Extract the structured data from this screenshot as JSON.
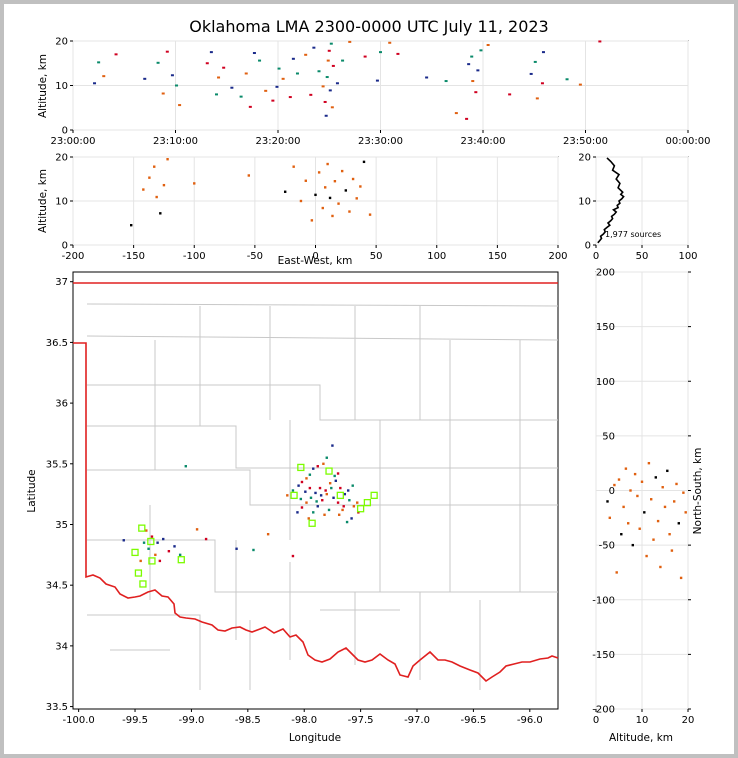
{
  "title": "Oklahoma LMA 2300-0000 UTC July 11, 2023",
  "colors": {
    "state_border": "#e02020",
    "county_lines": "#c8c8c8",
    "stations": "#7cfc00",
    "early": "#1a2a8a",
    "mid": "#0a8a6a",
    "late": "#e06010",
    "latest": "#d00020"
  },
  "chart_data": [
    {
      "id": "time_height",
      "type": "scatter",
      "title": "",
      "xlabel": "",
      "ylabel": "Altitude, km",
      "xlim": [
        "23:00:00",
        "00:00:00"
      ],
      "ylim": [
        0,
        20
      ],
      "xticks": [
        "23:00:00",
        "23:10:00",
        "23:20:00",
        "23:30:00",
        "23:40:00",
        "23:50:00",
        "00:00:00"
      ],
      "yticks": [
        0,
        10,
        20
      ],
      "points": [
        [
          2.1,
          10.5
        ],
        [
          2.5,
          15.2
        ],
        [
          3.0,
          12.1
        ],
        [
          4.2,
          17.0
        ],
        [
          7.0,
          11.5
        ],
        [
          8.3,
          15.1
        ],
        [
          8.8,
          8.2
        ],
        [
          9.2,
          17.6
        ],
        [
          9.7,
          12.3
        ],
        [
          10.1,
          10.0
        ],
        [
          10.4,
          5.6
        ],
        [
          13.1,
          15.0
        ],
        [
          13.5,
          17.5
        ],
        [
          14.0,
          8.0
        ],
        [
          14.2,
          11.8
        ],
        [
          14.7,
          14.0
        ],
        [
          15.5,
          9.5
        ],
        [
          16.4,
          7.5
        ],
        [
          16.9,
          12.7
        ],
        [
          17.3,
          5.2
        ],
        [
          17.7,
          17.3
        ],
        [
          18.2,
          15.6
        ],
        [
          18.8,
          8.8
        ],
        [
          19.5,
          6.6
        ],
        [
          19.9,
          9.7
        ],
        [
          20.1,
          13.8
        ],
        [
          20.5,
          11.5
        ],
        [
          21.2,
          7.4
        ],
        [
          21.5,
          16.0
        ],
        [
          21.9,
          12.7
        ],
        [
          22.7,
          16.9
        ],
        [
          23.2,
          7.9
        ],
        [
          23.5,
          18.5
        ],
        [
          24.0,
          13.2
        ],
        [
          24.4,
          9.8
        ],
        [
          24.6,
          6.3
        ],
        [
          24.7,
          3.2
        ],
        [
          24.8,
          11.9
        ],
        [
          24.9,
          15.6
        ],
        [
          25.0,
          17.8
        ],
        [
          25.1,
          8.9
        ],
        [
          25.2,
          19.4
        ],
        [
          25.3,
          5.1
        ],
        [
          25.4,
          14.4
        ],
        [
          25.8,
          10.5
        ],
        [
          26.3,
          15.6
        ],
        [
          27.0,
          19.8
        ],
        [
          28.5,
          16.5
        ],
        [
          29.7,
          11.1
        ],
        [
          30.0,
          17.5
        ],
        [
          30.9,
          19.6
        ],
        [
          31.7,
          17.1
        ],
        [
          34.5,
          11.8
        ],
        [
          36.4,
          11.0
        ],
        [
          37.4,
          3.8
        ],
        [
          38.4,
          2.5
        ],
        [
          38.6,
          14.8
        ],
        [
          38.9,
          16.5
        ],
        [
          39.0,
          11.0
        ],
        [
          39.3,
          8.5
        ],
        [
          39.5,
          13.4
        ],
        [
          39.8,
          17.9
        ],
        [
          40.5,
          19.1
        ],
        [
          42.6,
          8.0
        ],
        [
          44.7,
          12.6
        ],
        [
          45.1,
          15.3
        ],
        [
          45.3,
          7.1
        ],
        [
          45.8,
          10.5
        ],
        [
          45.9,
          17.5
        ],
        [
          48.2,
          11.4
        ],
        [
          49.5,
          10.2
        ],
        [
          51.4,
          19.9
        ]
      ]
    },
    {
      "id": "ew_altitude",
      "type": "scatter",
      "title": "",
      "xlabel": "East-West, km",
      "ylabel": "Altitude, km",
      "xlim": [
        -200,
        200
      ],
      "ylim": [
        0,
        20
      ],
      "xticks": [
        -200,
        -150,
        -100,
        -50,
        0,
        50,
        100,
        150,
        200
      ],
      "yticks": [
        0,
        10,
        20
      ],
      "points": [
        [
          -152,
          4.5
        ],
        [
          -142,
          12.6
        ],
        [
          -137,
          15.3
        ],
        [
          -133,
          17.8
        ],
        [
          -131,
          10.9
        ],
        [
          -128,
          7.2
        ],
        [
          -125,
          13.6
        ],
        [
          -122,
          19.5
        ],
        [
          -100,
          14.0
        ],
        [
          -55,
          15.8
        ],
        [
          -25,
          12.1
        ],
        [
          -18,
          17.8
        ],
        [
          -12,
          10.0
        ],
        [
          -8,
          14.6
        ],
        [
          -3,
          5.6
        ],
        [
          0,
          11.4
        ],
        [
          3,
          16.5
        ],
        [
          6,
          8.4
        ],
        [
          8,
          13.1
        ],
        [
          10,
          18.4
        ],
        [
          12,
          10.7
        ],
        [
          14,
          6.6
        ],
        [
          16,
          14.5
        ],
        [
          19,
          9.4
        ],
        [
          22,
          16.8
        ],
        [
          25,
          12.4
        ],
        [
          28,
          7.6
        ],
        [
          31,
          15.0
        ],
        [
          34,
          10.6
        ],
        [
          37,
          13.3
        ],
        [
          40,
          18.9
        ],
        [
          45,
          6.9
        ]
      ]
    },
    {
      "id": "altitude_histogram",
      "type": "line",
      "title": "",
      "xlabel": "",
      "ylabel": "",
      "xlim": [
        0,
        100
      ],
      "ylim": [
        0,
        20
      ],
      "xticks": [
        0,
        50,
        100
      ],
      "yticks": [
        0,
        10,
        20
      ],
      "annotation": "1,977 sources",
      "x": [
        2,
        4,
        6,
        5,
        8,
        10,
        9,
        12,
        15,
        13,
        16,
        18,
        17,
        20,
        22,
        19,
        24,
        23,
        26,
        25,
        28,
        30,
        27,
        29,
        24,
        26,
        22,
        25,
        18,
        20,
        16,
        12
      ],
      "y": [
        0.5,
        1.0,
        1.5,
        2.0,
        2.5,
        3.0,
        3.5,
        4.0,
        4.5,
        5.0,
        5.5,
        6.0,
        6.5,
        7.0,
        7.5,
        8.0,
        8.5,
        9.0,
        9.5,
        10.0,
        10.5,
        11.0,
        11.5,
        12.0,
        13.0,
        14.0,
        15.0,
        16.0,
        17.0,
        18.0,
        19.0,
        19.8
      ]
    },
    {
      "id": "plan_view",
      "type": "scatter",
      "title": "",
      "xlabel": "Longitude",
      "ylabel": "Latitude",
      "xlim": [
        -100.05,
        -95.75
      ],
      "ylim": [
        33.48,
        37.08
      ],
      "xticks": [
        -100.0,
        -99.5,
        -99.0,
        -98.5,
        -98.0,
        -97.5,
        -97.0,
        -96.5,
        -96.0
      ],
      "yticks": [
        33.5,
        34.0,
        34.5,
        35.0,
        35.5,
        36.0,
        36.5,
        37.0
      ],
      "stations": [
        [
          -98.03,
          35.47
        ],
        [
          -97.78,
          35.44
        ],
        [
          -98.09,
          35.24
        ],
        [
          -97.38,
          35.24
        ],
        [
          -97.68,
          35.24
        ],
        [
          -97.5,
          35.13
        ],
        [
          -97.44,
          35.18
        ],
        [
          -97.93,
          35.01
        ],
        [
          -99.44,
          34.97
        ],
        [
          -99.36,
          34.86
        ],
        [
          -99.5,
          34.77
        ],
        [
          -99.35,
          34.7
        ],
        [
          -99.09,
          34.71
        ],
        [
          -99.47,
          34.6
        ],
        [
          -99.43,
          34.51
        ]
      ],
      "points": [
        [
          -97.75,
          35.65
        ],
        [
          -97.8,
          35.55
        ],
        [
          -97.83,
          35.5
        ],
        [
          -97.88,
          35.48
        ],
        [
          -97.92,
          35.46
        ],
        [
          -97.95,
          35.41
        ],
        [
          -97.98,
          35.38
        ],
        [
          -98.02,
          35.35
        ],
        [
          -98.05,
          35.32
        ],
        [
          -98.1,
          35.28
        ],
        [
          -98.15,
          35.24
        ],
        [
          -97.7,
          35.42
        ],
        [
          -97.72,
          35.36
        ],
        [
          -97.76,
          35.3
        ],
        [
          -97.8,
          35.25
        ],
        [
          -97.84,
          35.2
        ],
        [
          -97.88,
          35.15
        ],
        [
          -97.92,
          35.1
        ],
        [
          -97.96,
          35.05
        ],
        [
          -97.68,
          35.3
        ],
        [
          -97.64,
          35.25
        ],
        [
          -97.6,
          35.2
        ],
        [
          -97.56,
          35.15
        ],
        [
          -97.52,
          35.1
        ],
        [
          -97.58,
          35.05
        ],
        [
          -97.62,
          35.02
        ],
        [
          -97.66,
          35.12
        ],
        [
          -97.7,
          35.18
        ],
        [
          -97.74,
          35.22
        ],
        [
          -97.78,
          35.12
        ],
        [
          -97.82,
          35.08
        ],
        [
          -97.86,
          35.3
        ],
        [
          -97.9,
          35.26
        ],
        [
          -97.94,
          35.22
        ],
        [
          -97.98,
          35.18
        ],
        [
          -98.02,
          35.14
        ],
        [
          -98.06,
          35.1
        ],
        [
          -97.73,
          35.4
        ],
        [
          -97.77,
          35.34
        ],
        [
          -97.81,
          35.28
        ],
        [
          -97.85,
          35.24
        ],
        [
          -97.89,
          35.19
        ],
        [
          -97.69,
          35.08
        ],
        [
          -97.65,
          35.15
        ],
        [
          -97.61,
          35.28
        ],
        [
          -97.57,
          35.32
        ],
        [
          -97.53,
          35.18
        ],
        [
          -97.95,
          35.3
        ],
        [
          -97.99,
          35.27
        ],
        [
          -98.03,
          35.21
        ],
        [
          -99.4,
          34.95
        ],
        [
          -99.35,
          34.9
        ],
        [
          -99.3,
          34.85
        ],
        [
          -99.38,
          34.8
        ],
        [
          -99.32,
          34.75
        ],
        [
          -99.28,
          34.7
        ],
        [
          -99.25,
          34.88
        ],
        [
          -99.42,
          34.85
        ],
        [
          -99.45,
          34.7
        ],
        [
          -99.2,
          34.78
        ],
        [
          -99.15,
          34.82
        ],
        [
          -99.1,
          34.75
        ],
        [
          -98.95,
          34.96
        ],
        [
          -98.87,
          34.88
        ],
        [
          -98.6,
          34.8
        ],
        [
          -98.45,
          34.79
        ],
        [
          -98.32,
          34.92
        ],
        [
          -98.1,
          34.74
        ],
        [
          -99.6,
          34.87
        ],
        [
          -99.05,
          35.48
        ]
      ]
    },
    {
      "id": "ns_altitude",
      "type": "scatter",
      "title": "",
      "xlabel": "Altitude, km",
      "ylabel": "North-South, km",
      "xlim": [
        0,
        20
      ],
      "ylim": [
        -200,
        200
      ],
      "xticks": [
        0,
        10,
        20
      ],
      "yticks": [
        -200,
        -150,
        -100,
        -50,
        0,
        50,
        100,
        150,
        200
      ],
      "points": [
        [
          2.5,
          -10
        ],
        [
          3.0,
          -25
        ],
        [
          4.0,
          5
        ],
        [
          4.5,
          -75
        ],
        [
          5.0,
          10
        ],
        [
          5.5,
          -40
        ],
        [
          6.0,
          -15
        ],
        [
          6.5,
          20
        ],
        [
          7.0,
          -30
        ],
        [
          7.5,
          0
        ],
        [
          8.0,
          -50
        ],
        [
          8.5,
          15
        ],
        [
          9.0,
          -5
        ],
        [
          9.5,
          -35
        ],
        [
          10.0,
          8
        ],
        [
          10.5,
          -20
        ],
        [
          11.0,
          -60
        ],
        [
          11.5,
          25
        ],
        [
          12.0,
          -8
        ],
        [
          12.5,
          -45
        ],
        [
          13.0,
          12
        ],
        [
          13.5,
          -28
        ],
        [
          14.0,
          -70
        ],
        [
          14.5,
          3
        ],
        [
          15.0,
          -15
        ],
        [
          15.5,
          18
        ],
        [
          16.0,
          -40
        ],
        [
          16.5,
          -55
        ],
        [
          17.0,
          -10
        ],
        [
          17.5,
          6
        ],
        [
          18.0,
          -30
        ],
        [
          18.5,
          -80
        ],
        [
          19.0,
          -2
        ],
        [
          19.5,
          -20
        ]
      ]
    }
  ]
}
